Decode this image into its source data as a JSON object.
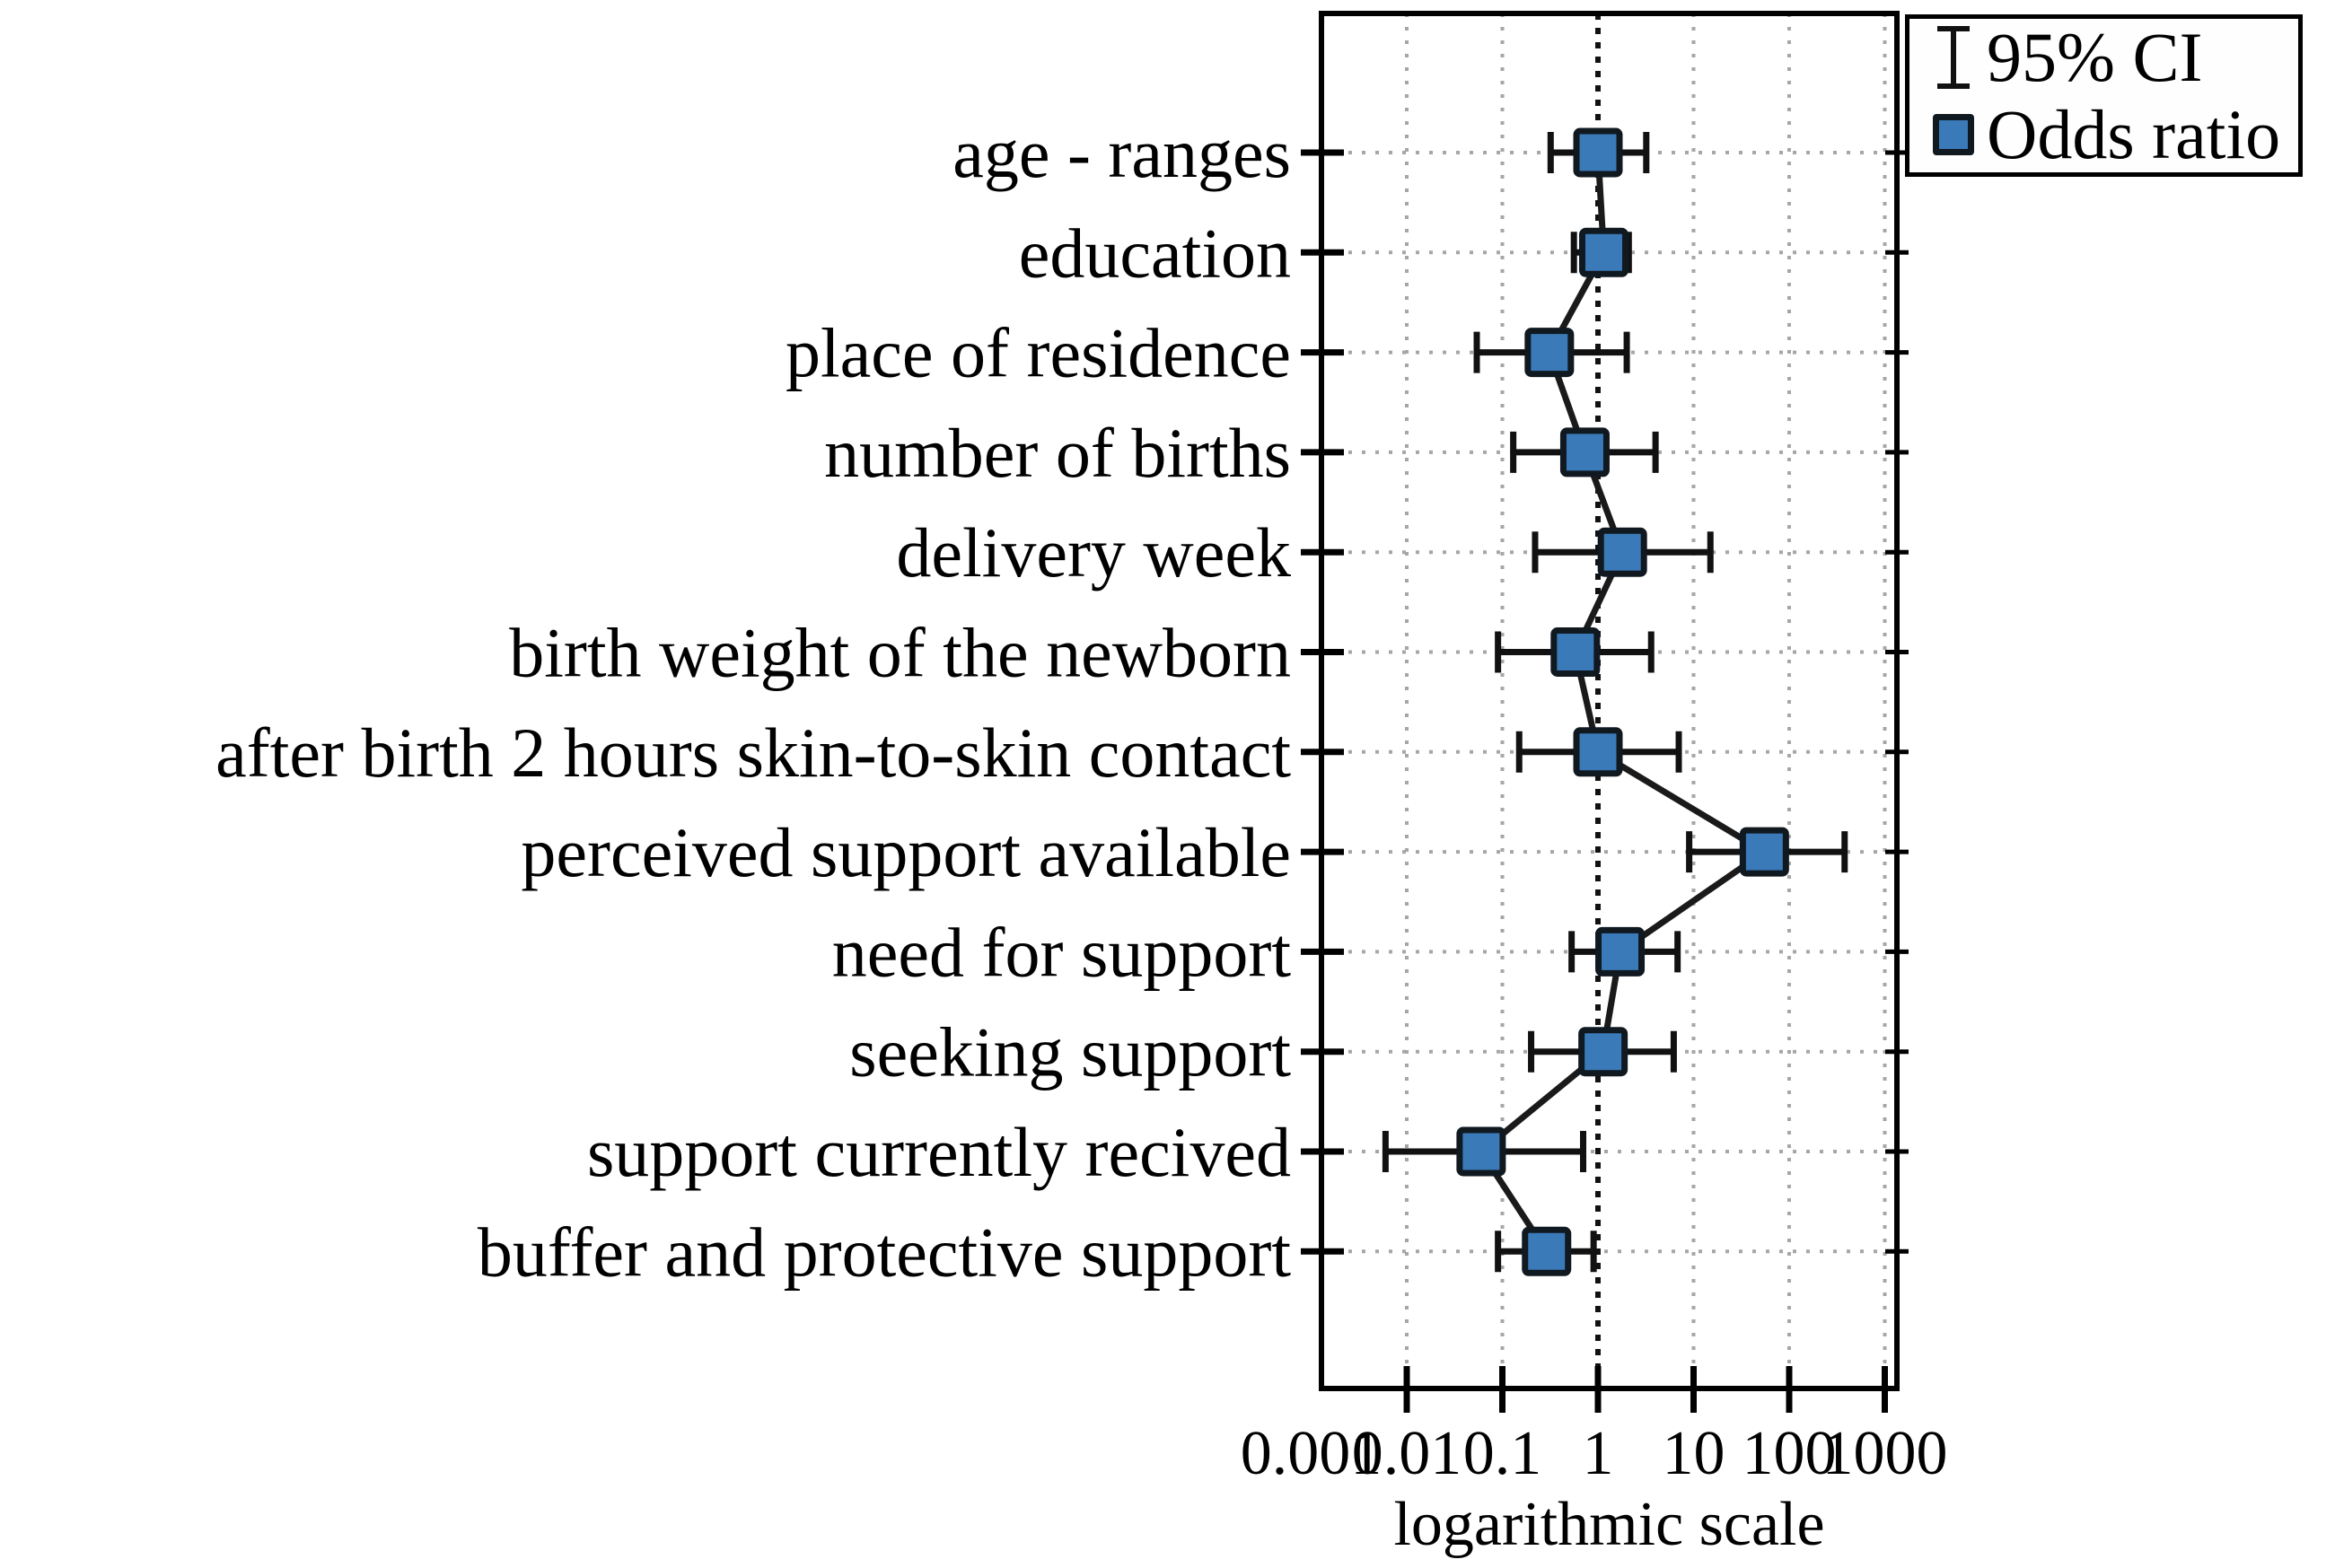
{
  "figure": {
    "background": "#ffffff",
    "description": "Forest plot of odds ratios with 95% confidence intervals on a logarithmic x scale"
  },
  "chart_data": {
    "type": "scatter",
    "subtype": "forest-plot",
    "title": "",
    "xlabel": "logarithmic scale",
    "ylabel": "",
    "x_scale": "log",
    "x_range": [
      0.0012,
      1340
    ],
    "x_ticks": [
      0.001,
      0.01,
      0.1,
      1,
      10,
      100,
      1000
    ],
    "x_tick_labels": [
      "0.001",
      "0.01",
      "0.1",
      "1",
      "10",
      "100",
      "1000"
    ],
    "reference_line_x": 1,
    "grid": true,
    "legend_position": "top-right",
    "legend": [
      {
        "symbol": "error-bar",
        "label": "95% CI"
      },
      {
        "symbol": "square",
        "label": "Odds ratio"
      }
    ],
    "categories": [
      "age - ranges",
      "education",
      "place of residence",
      "number of births",
      "delivery week",
      "birth weight of the newborn",
      "after birth 2 hours skin-to-skin contact",
      "perceived support available",
      "need for support",
      "seeking support",
      "support currently recived",
      "buffer and protective support"
    ],
    "series": [
      {
        "name": "Odds ratio",
        "points": [
          {
            "category": "age - ranges",
            "or": 1.0,
            "ci_low": 0.32,
            "ci_high": 3.2
          },
          {
            "category": "education",
            "or": 1.15,
            "ci_low": 0.56,
            "ci_high": 2.1
          },
          {
            "category": "place of residence",
            "or": 0.31,
            "ci_low": 0.054,
            "ci_high": 2.0
          },
          {
            "category": "number of births",
            "or": 0.73,
            "ci_low": 0.13,
            "ci_high": 4.0
          },
          {
            "category": "delivery week",
            "or": 1.8,
            "ci_low": 0.22,
            "ci_high": 15
          },
          {
            "category": "birth weight of the newborn",
            "or": 0.58,
            "ci_low": 0.09,
            "ci_high": 3.6
          },
          {
            "category": "after birth 2 hours skin-to-skin contact",
            "or": 1.0,
            "ci_low": 0.15,
            "ci_high": 7.0
          },
          {
            "category": "perceived support available",
            "or": 55,
            "ci_low": 9,
            "ci_high": 380
          },
          {
            "category": "need for support",
            "or": 1.7,
            "ci_low": 0.53,
            "ci_high": 6.8
          },
          {
            "category": "seeking support",
            "or": 1.13,
            "ci_low": 0.2,
            "ci_high": 6.2
          },
          {
            "category": "support currently recived",
            "or": 0.06,
            "ci_low": 0.006,
            "ci_high": 0.7
          },
          {
            "category": "buffer and protective support",
            "or": 0.29,
            "ci_low": 0.09,
            "ci_high": 0.9
          }
        ]
      }
    ],
    "style": {
      "marker_fill": "#3b7ab8",
      "marker_stroke": "#101820",
      "line_color": "#1a1a1a",
      "ci_color": "#111111",
      "grid_color": "#a6a6a6",
      "reference_line_color": "#111111",
      "axis_color": "#000000",
      "text_color": "#000000"
    }
  }
}
